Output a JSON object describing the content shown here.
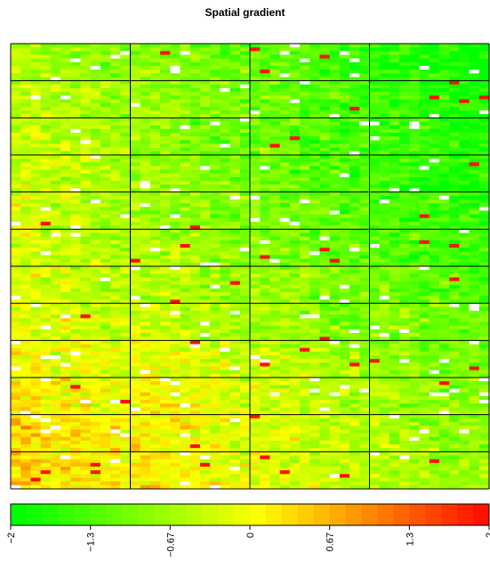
{
  "chart_data": {
    "type": "heatmap",
    "title": "Spatial gradient",
    "grid": {
      "block_rows": 12,
      "block_cols": 4,
      "rows_per_block": 10,
      "cols_per_block": 12,
      "block_means": [
        [
          -0.7,
          -1.0,
          -1.3,
          -1.75
        ],
        [
          -0.55,
          -0.9,
          -1.25,
          -1.6
        ],
        [
          -0.5,
          -0.9,
          -1.2,
          -1.6
        ],
        [
          -0.5,
          -0.85,
          -1.2,
          -1.55
        ],
        [
          -0.45,
          -0.8,
          -1.1,
          -1.45
        ],
        [
          -0.4,
          -0.7,
          -1.0,
          -1.4
        ],
        [
          -0.35,
          -0.6,
          -0.85,
          -1.2
        ],
        [
          -0.25,
          -0.45,
          -0.75,
          -1.0
        ],
        [
          -0.1,
          -0.2,
          -0.55,
          -0.9
        ],
        [
          0.05,
          -0.1,
          -0.45,
          -0.8
        ],
        [
          0.15,
          0.0,
          -0.35,
          -0.7
        ],
        [
          0.25,
          0.05,
          -0.3,
          -0.65
        ]
      ],
      "within_block_gradient": -0.35,
      "missing_fraction": 0.035,
      "outlier_fraction": 0.006,
      "outlier_value": 1.9
    },
    "color_scale": {
      "min": -2,
      "max": 2,
      "low_color": "#00ff00",
      "mid_color": "#ffff00",
      "high_color": "#ff0000",
      "missing_color": "#ffffff",
      "steps": 30
    },
    "legend_ticks": [
      "−2",
      "−1.3",
      "−0.67",
      "0",
      "0.67",
      "1.3",
      "2"
    ],
    "legend_tick_values": [
      -2,
      -1.333,
      -0.667,
      0,
      0.667,
      1.333,
      2
    ]
  }
}
